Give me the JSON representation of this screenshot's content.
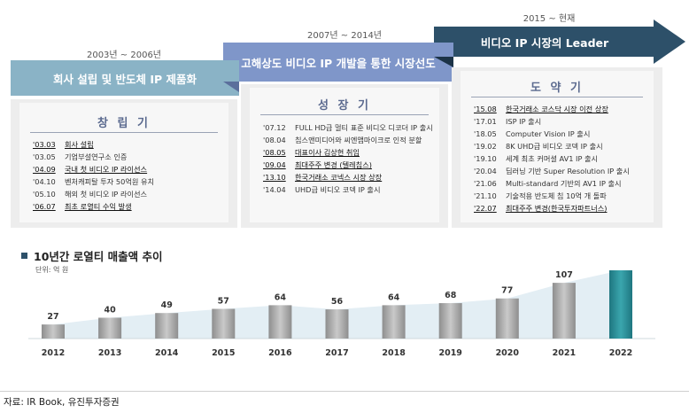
{
  "phases": [
    {
      "period": "2003년 ~ 2006년",
      "banner": "회사 설립 및 반도체 IP 제품화",
      "title": "창 립 기",
      "items": [
        {
          "date": "'03.03",
          "text": "회사 설립",
          "underline": true
        },
        {
          "date": "'03.05",
          "text": "기업부설연구소 인증",
          "underline": false
        },
        {
          "date": "'04.09",
          "text": "국내 첫 비디오 IP 라이선스",
          "underline": true
        },
        {
          "date": "'04.10",
          "text": "벤처캐피탈 투자 50억원 유치",
          "underline": false
        },
        {
          "date": "'05.10",
          "text": "해외 첫 비디오 IP 라이선스",
          "underline": false
        },
        {
          "date": "'06.07",
          "text": "최초 로열티 수익 발생",
          "underline": true
        }
      ]
    },
    {
      "period": "2007년 ~ 2014년",
      "banner": "고해상도 비디오 IP 개발을 통한 시장선도",
      "title": "성 장 기",
      "items": [
        {
          "date": "'07.12",
          "text": "FULL HD급 멀티 표준 비디오 디코더 IP 출시",
          "underline": false
        },
        {
          "date": "'08.04",
          "text": "칩스앤미디어와 씨엔앰마이크로 인적 분할",
          "underline": false
        },
        {
          "date": "'08.05",
          "text": "대표이사 김상현 취임",
          "underline": true
        },
        {
          "date": "'09.04",
          "text": "최대주주 변경 (텔레칩스)",
          "underline": true
        },
        {
          "date": "'13.10",
          "text": "한국거래소 코넥스 시장 상장",
          "underline": true
        },
        {
          "date": "'14.04",
          "text": "UHD급 비디오 코덱 IP 출시",
          "underline": false
        }
      ]
    },
    {
      "period": "2015 ~ 현재",
      "banner": "비디오 IP 시장의 Leader",
      "title": "도 약 기",
      "items": [
        {
          "date": "'15.08",
          "text": "한국거래소 코스닥 시장 이전 상장",
          "underline": true
        },
        {
          "date": "'17.01",
          "text": "ISP IP 출시",
          "underline": false
        },
        {
          "date": "'18.05",
          "text": "Computer Vision IP 출시",
          "underline": false
        },
        {
          "date": "'19.02",
          "text": "8K UHD급 비디오 코덱 IP 출시",
          "underline": false
        },
        {
          "date": "'19.10",
          "text": "세계 최초 커머셜 AV1 IP 출시",
          "underline": false
        },
        {
          "date": "'20.04",
          "text": "딥러닝 기반 Super Resolution IP 출시",
          "underline": false
        },
        {
          "date": "'21.06",
          "text": "Multi-standard 기반의 AV1 IP 출시",
          "underline": false
        },
        {
          "date": "'21.10",
          "text": "기술적용 반도체 칩 10억 개 돌파",
          "underline": false
        },
        {
          "date": "'22.07",
          "text": "최대주주 변경(한국투자파트너스)",
          "underline": true
        }
      ]
    }
  ],
  "chart_data": {
    "type": "bar",
    "title": "10년간 로열티 매출액 추이",
    "unit": "단위: 억 원",
    "categories": [
      "2012",
      "2013",
      "2014",
      "2015",
      "2016",
      "2017",
      "2018",
      "2019",
      "2020",
      "2021",
      "2022"
    ],
    "values": [
      27,
      40,
      49,
      57,
      64,
      56,
      64,
      68,
      77,
      107,
      131
    ],
    "ylim": [
      0,
      131
    ],
    "grid": false,
    "highlight_last": true
  },
  "colors": {
    "bar_gray": "#a8a8a8",
    "bar_highlight": "#2a8f98",
    "area_fill": "#e3eef4",
    "banner_1": "#8ab3c6",
    "banner_2": "#7f96c9",
    "banner_3": "#2d5069"
  },
  "source": "자료: IR Book, 유진투자증권"
}
